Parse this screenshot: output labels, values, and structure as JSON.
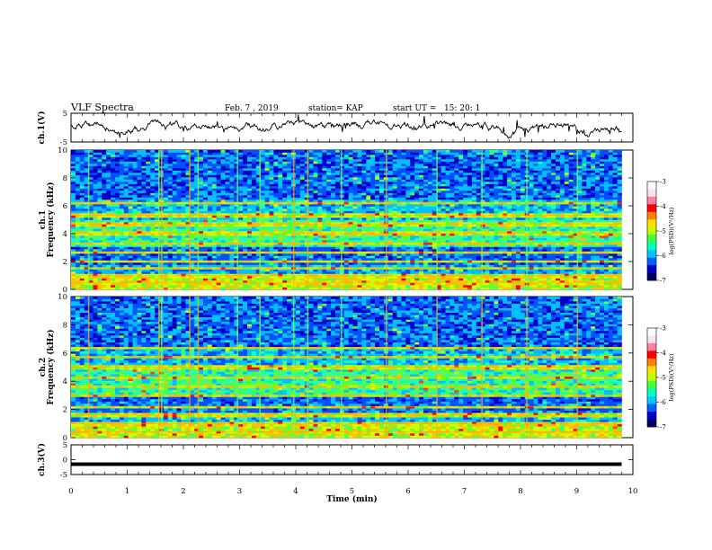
{
  "header": {
    "title": "VLF Spectra",
    "date": "Feb. 7 , 2019",
    "station": "station= KAP",
    "start_ut": "start UT =   15: 20: 1"
  },
  "chart_data": [
    {
      "type": "line",
      "panel": "ch1-waveform",
      "ylabel": "ch.1(V)",
      "ylim": [
        -5,
        5
      ],
      "yticks": [
        "5",
        "-5"
      ],
      "x_range_min": [
        0,
        9.8
      ],
      "note_color": "#000000"
    },
    {
      "type": "heatmap",
      "panel": "ch1-spectrogram",
      "ylabel": "ch.1\nFrequency (kHz)",
      "ylabel_line1": "ch.1",
      "ylabel_line2": "Frequency (kHz)",
      "ylim": [
        0,
        10
      ],
      "yticks": [
        "0",
        "2",
        "4",
        "6",
        "8",
        "10"
      ],
      "x_range_min": [
        0,
        9.8
      ],
      "colorbar": {
        "label": "log(PSD)(V²/Hz)",
        "range": [
          -7,
          -3
        ],
        "ticks": [
          "-3",
          "-4",
          "-5",
          "-6",
          "-7"
        ],
        "colors": [
          "#000060",
          "#0000c8",
          "#0060ff",
          "#00c8ff",
          "#00ffc0",
          "#40ff40",
          "#c0ff00",
          "#ffe000",
          "#ff8000",
          "#ff0000",
          "#ff80a0",
          "#ffe0f0",
          "#ffffff"
        ]
      }
    },
    {
      "type": "heatmap",
      "panel": "ch2-spectrogram",
      "ylabel": "ch.2\nFrequency (kHz)",
      "ylabel_line1": "ch.2",
      "ylabel_line2": "Frequency (kHz)",
      "ylim": [
        0,
        10
      ],
      "yticks": [
        "0",
        "2",
        "4",
        "6",
        "8",
        "10"
      ],
      "x_range_min": [
        0,
        9.8
      ],
      "colorbar": {
        "label": "log(PSD)(V²/Hz)",
        "range": [
          -7,
          -3
        ],
        "ticks": [
          "-3",
          "-4",
          "-5",
          "-6",
          "-7"
        ],
        "colors": [
          "#000060",
          "#0000c8",
          "#0060ff",
          "#00c8ff",
          "#00ffc0",
          "#40ff40",
          "#c0ff00",
          "#ffe000",
          "#ff8000",
          "#ff0000",
          "#ff80a0",
          "#ffe0f0",
          "#ffffff"
        ]
      }
    },
    {
      "type": "line",
      "panel": "ch3-waveform",
      "ylabel": "ch.3(V)",
      "ylim": [
        -5,
        5
      ],
      "yticks": [
        "5",
        "0",
        "-5"
      ],
      "x_range_min": [
        0,
        9.8
      ],
      "value_approx": -1.5
    }
  ],
  "xaxis": {
    "label": "Time (min)",
    "xlim": [
      0,
      10
    ],
    "ticks": [
      "0",
      "1",
      "2",
      "3",
      "4",
      "5",
      "6",
      "7",
      "8",
      "9",
      "10"
    ]
  }
}
